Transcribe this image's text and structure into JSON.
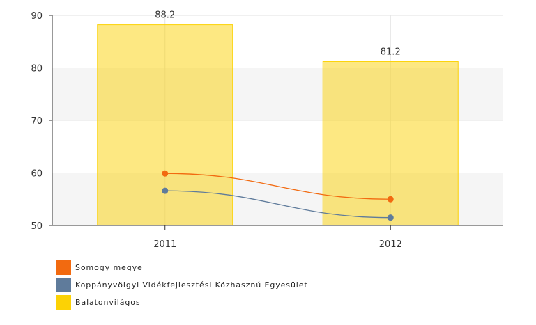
{
  "chart_data": {
    "type": "bar",
    "categories": [
      "2011",
      "2012"
    ],
    "ylim": [
      50,
      90
    ],
    "yticks": [
      50,
      60,
      70,
      80,
      90
    ],
    "grid": true,
    "legend_position": "bottom-left",
    "series": [
      {
        "name": "Somogy megye",
        "type": "line",
        "color": "#f26a10",
        "values": [
          59.9,
          55.0
        ]
      },
      {
        "name": "Koppányvölgyi Vidékfejlesztési Közhasznú Egyesület",
        "type": "line",
        "color": "#5f7b9b",
        "values": [
          56.6,
          51.5
        ]
      },
      {
        "name": "Balatonvilágos",
        "type": "bar",
        "color": "#fcd205",
        "values": [
          88.2,
          81.2
        ],
        "data_labels": [
          "88.2",
          "81.2"
        ]
      }
    ]
  },
  "legend": {
    "items": [
      {
        "label": "Somogy megye",
        "color": "#f26a10"
      },
      {
        "label": "Koppányvölgyi Vidékfejlesztési Közhasznú Egyesület",
        "color": "#5f7b9b"
      },
      {
        "label": "Balatonvilágos",
        "color": "#fcd205"
      }
    ]
  }
}
